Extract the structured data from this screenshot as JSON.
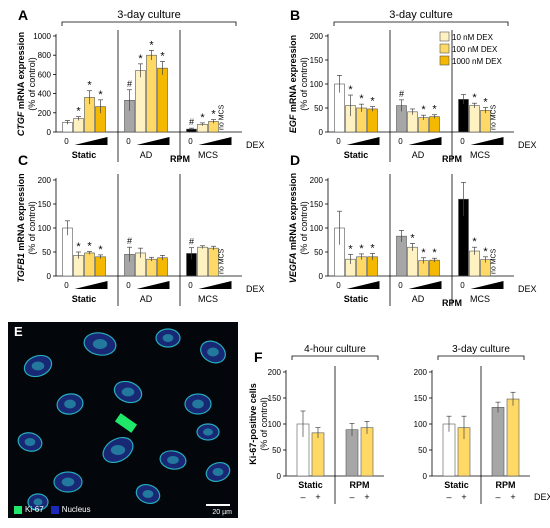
{
  "colors": {
    "static_fill": "#ffffff",
    "ad_fill": "#a6a6a6",
    "mcs_fill": "#000000",
    "dex10": "#fff2c2",
    "dex100": "#ffd966",
    "dex1000": "#f5b800",
    "rpm_fill": "#a6a6a6",
    "ki67": "#1fe86b",
    "nucleus": "#1c28b8"
  },
  "legend": [
    "10 nM DEX",
    "100 nM DEX",
    "1000 nM DEX"
  ],
  "common": {
    "dex_label": "DEX",
    "rpm_label": "RPM",
    "zero": "0",
    "no_mcs": "no MCS",
    "static": "Static",
    "ad": "AD",
    "mcs": "MCS",
    "ylabel_sub": "(% of control)"
  },
  "micro": {
    "label": "E",
    "ki67": "Ki-67",
    "nucleus": "Nucleus",
    "scale": "20 µm"
  },
  "chart_data": [
    {
      "id": "A",
      "type": "bar",
      "title": "3-day culture",
      "gene": "CTGF",
      "ylabel_rest": " mRNA expression",
      "ylim": [
        0,
        1000
      ],
      "yticks": [
        0,
        200,
        400,
        600,
        800,
        1000
      ],
      "show_rpm": true,
      "show_title": true,
      "groups": [
        {
          "name": "Static",
          "values": [
            100,
            140,
            360,
            265
          ],
          "errors": [
            20,
            20,
            70,
            70
          ],
          "star": [
            false,
            true,
            true,
            true
          ],
          "hash": false
        },
        {
          "name": "AD",
          "values": [
            330,
            640,
            800,
            665
          ],
          "errors": [
            110,
            70,
            50,
            70
          ],
          "star": [
            false,
            true,
            true,
            true
          ],
          "hash": true
        },
        {
          "name": "MCS",
          "values": [
            30,
            80,
            110,
            null
          ],
          "errors": [
            10,
            15,
            20,
            0
          ],
          "star": [
            false,
            true,
            true,
            false
          ],
          "hash": true,
          "no_mcs": true
        }
      ]
    },
    {
      "id": "B",
      "type": "bar",
      "title": "3-day culture",
      "gene": "EGF",
      "ylabel_rest": " mRNA expression",
      "ylim": [
        0,
        200
      ],
      "yticks": [
        0,
        50,
        100,
        150,
        200
      ],
      "show_rpm": true,
      "show_title": true,
      "show_legend": true,
      "groups": [
        {
          "name": "Static",
          "values": [
            100,
            55,
            50,
            48
          ],
          "errors": [
            18,
            22,
            8,
            5
          ],
          "star": [
            false,
            true,
            true,
            true
          ],
          "hash": false
        },
        {
          "name": "AD",
          "values": [
            55,
            42,
            30,
            32
          ],
          "errors": [
            12,
            6,
            5,
            4
          ],
          "star": [
            false,
            false,
            true,
            true
          ],
          "hash": true
        },
        {
          "name": "MCS",
          "values": [
            68,
            55,
            45,
            null
          ],
          "errors": [
            10,
            5,
            6,
            0
          ],
          "star": [
            false,
            true,
            true,
            false
          ],
          "hash": false,
          "no_mcs": true
        }
      ]
    },
    {
      "id": "C",
      "type": "bar",
      "gene": "TGFB1",
      "ylabel_rest": " mRNA expression",
      "ylim": [
        0,
        200
      ],
      "yticks": [
        0,
        50,
        100,
        150,
        200
      ],
      "show_rpm": false,
      "groups": [
        {
          "name": "Static",
          "values": [
            100,
            43,
            48,
            40
          ],
          "errors": [
            15,
            7,
            3,
            4
          ],
          "star": [
            false,
            true,
            true,
            true
          ],
          "hash": false
        },
        {
          "name": "AD",
          "values": [
            45,
            48,
            35,
            38
          ],
          "errors": [
            15,
            10,
            4,
            5
          ],
          "star": [
            false,
            false,
            false,
            false
          ],
          "hash": true
        },
        {
          "name": "MCS",
          "values": [
            47,
            60,
            58,
            null
          ],
          "errors": [
            12,
            3,
            4,
            0
          ],
          "star": [
            false,
            false,
            false,
            false
          ],
          "hash": true,
          "no_mcs": true
        }
      ]
    },
    {
      "id": "D",
      "type": "bar",
      "gene": "VEGFA",
      "ylabel_rest": " mRNA expression",
      "ylim": [
        0,
        200
      ],
      "yticks": [
        0,
        50,
        100,
        150,
        200
      ],
      "show_rpm": true,
      "groups": [
        {
          "name": "Static",
          "values": [
            100,
            35,
            40,
            40
          ],
          "errors": [
            35,
            10,
            6,
            7
          ],
          "star": [
            false,
            true,
            true,
            true
          ],
          "hash": false
        },
        {
          "name": "AD",
          "values": [
            83,
            60,
            32,
            33
          ],
          "errors": [
            12,
            8,
            6,
            4
          ],
          "star": [
            false,
            true,
            true,
            true
          ],
          "hash": false
        },
        {
          "name": "MCS",
          "values": [
            160,
            52,
            34,
            null
          ],
          "errors": [
            35,
            8,
            6,
            0
          ],
          "star": [
            false,
            true,
            true,
            false
          ],
          "hash": false,
          "no_mcs": true
        }
      ]
    },
    {
      "id": "F1",
      "panel_label": "F",
      "type": "bar",
      "title": "4-hour culture",
      "ylabel": "Ki-67-positive cells",
      "ylim": [
        0,
        200
      ],
      "yticks": [
        0,
        50,
        100,
        150,
        200
      ],
      "groups": [
        {
          "name": "Static",
          "values": [
            100,
            83
          ],
          "errors": [
            25,
            10
          ]
        },
        {
          "name": "RPM",
          "values": [
            89,
            93
          ],
          "errors": [
            12,
            12
          ]
        }
      ],
      "ticks": [
        "–",
        "+"
      ]
    },
    {
      "id": "F2",
      "type": "bar",
      "title": "3-day culture",
      "ylim": [
        0,
        200
      ],
      "yticks": [
        0,
        50,
        100,
        150,
        200
      ],
      "groups": [
        {
          "name": "Static",
          "values": [
            100,
            93
          ],
          "errors": [
            15,
            22
          ]
        },
        {
          "name": "RPM",
          "values": [
            132,
            148
          ],
          "errors": [
            10,
            13
          ]
        }
      ],
      "ticks": [
        "–",
        "+"
      ]
    }
  ]
}
